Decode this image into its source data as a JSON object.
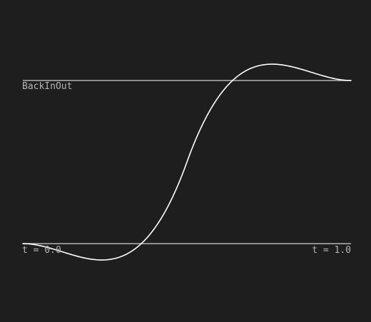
{
  "easing_name": "BackInOut",
  "t_start_label": "t = 0.0",
  "t_end_label": "t = 1.0",
  "colors": {
    "background": "#1e1e1e",
    "reference_line": "#b4b4b4",
    "curve": "#ffffff",
    "label": "#b4b4b4"
  },
  "curve": {
    "function": "back-in-out",
    "overshoot": 1.70158,
    "t_range": [
      0,
      1
    ]
  }
}
